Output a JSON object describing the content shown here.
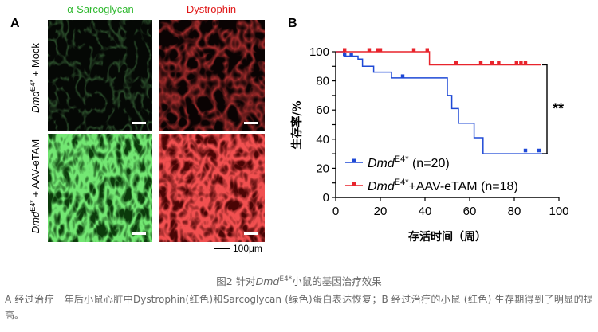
{
  "panel_a": {
    "letter": "A",
    "col_labels": [
      "α-Sarcoglycan",
      "Dystrophin"
    ],
    "row_labels": [
      {
        "gene": "Dmd",
        "sup": "E4*",
        "rest": " + Mock"
      },
      {
        "gene": "Dmd",
        "sup": "E4*",
        "rest": " + AAV-eTAM"
      }
    ],
    "scalebar_label": "100μm",
    "colors": {
      "green": "#2ecc2e",
      "red": "#e01818"
    }
  },
  "panel_b": {
    "letter": "B"
  },
  "chart_data": {
    "type": "line",
    "ylabel": "生存率/%",
    "xlabel": "存活时间（周）",
    "xlim": [
      0,
      100
    ],
    "ylim": [
      0,
      100
    ],
    "xticks": [
      0,
      20,
      40,
      60,
      80,
      100
    ],
    "yticks": [
      0,
      10,
      20,
      30,
      40,
      50,
      60,
      70,
      80,
      90,
      100
    ],
    "ytick_labels": [
      "0",
      "",
      "20",
      "",
      "40",
      "",
      "60",
      "",
      "80",
      "",
      "100"
    ],
    "significance": "**",
    "series": [
      {
        "name_italic": "Dmd",
        "name_sup": "E4*",
        "name_rest": " (n=20)",
        "color": "#1f49d6",
        "steps": [
          [
            0,
            100
          ],
          [
            4,
            100
          ],
          [
            4,
            97
          ],
          [
            10,
            97
          ],
          [
            10,
            95
          ],
          [
            12,
            95
          ],
          [
            12,
            90
          ],
          [
            17,
            90
          ],
          [
            17,
            86
          ],
          [
            25,
            86
          ],
          [
            25,
            82
          ],
          [
            50,
            82
          ],
          [
            50,
            70
          ],
          [
            52,
            70
          ],
          [
            52,
            61
          ],
          [
            55,
            61
          ],
          [
            55,
            51
          ],
          [
            62,
            51
          ],
          [
            62,
            41
          ],
          [
            66,
            41
          ],
          [
            66,
            30
          ],
          [
            95,
            30
          ]
        ],
        "censor": [
          [
            4,
            97
          ],
          [
            7,
            97
          ],
          [
            30,
            82
          ],
          [
            85,
            31
          ],
          [
            91,
            31
          ]
        ]
      },
      {
        "name_italic": "Dmd",
        "name_sup": "E4*",
        "name_rest": "+AAV-eTAM (n=18)",
        "color": "#e8242c",
        "steps": [
          [
            0,
            100
          ],
          [
            42,
            100
          ],
          [
            42,
            91
          ],
          [
            92,
            91
          ]
        ],
        "censor": [
          [
            4,
            100
          ],
          [
            15,
            100
          ],
          [
            19,
            100
          ],
          [
            20,
            100
          ],
          [
            35,
            100
          ],
          [
            41,
            100
          ],
          [
            54,
            91
          ],
          [
            65,
            91
          ],
          [
            70,
            91
          ],
          [
            73,
            91
          ],
          [
            81,
            91
          ],
          [
            83,
            91
          ],
          [
            85,
            91
          ]
        ]
      }
    ]
  },
  "caption": {
    "title_pre": "图2  针对",
    "title_gene": "Dmd",
    "title_sup": "E4*",
    "title_post": "小鼠的基因治疗效果",
    "body": "A 经过治疗一年后小鼠心脏中Dystrophin(红色)和Sarcoglycan (绿色)蛋白表达恢复；B 经过治疗的小鼠 (红色) 生存期得到了明显的提高。"
  }
}
